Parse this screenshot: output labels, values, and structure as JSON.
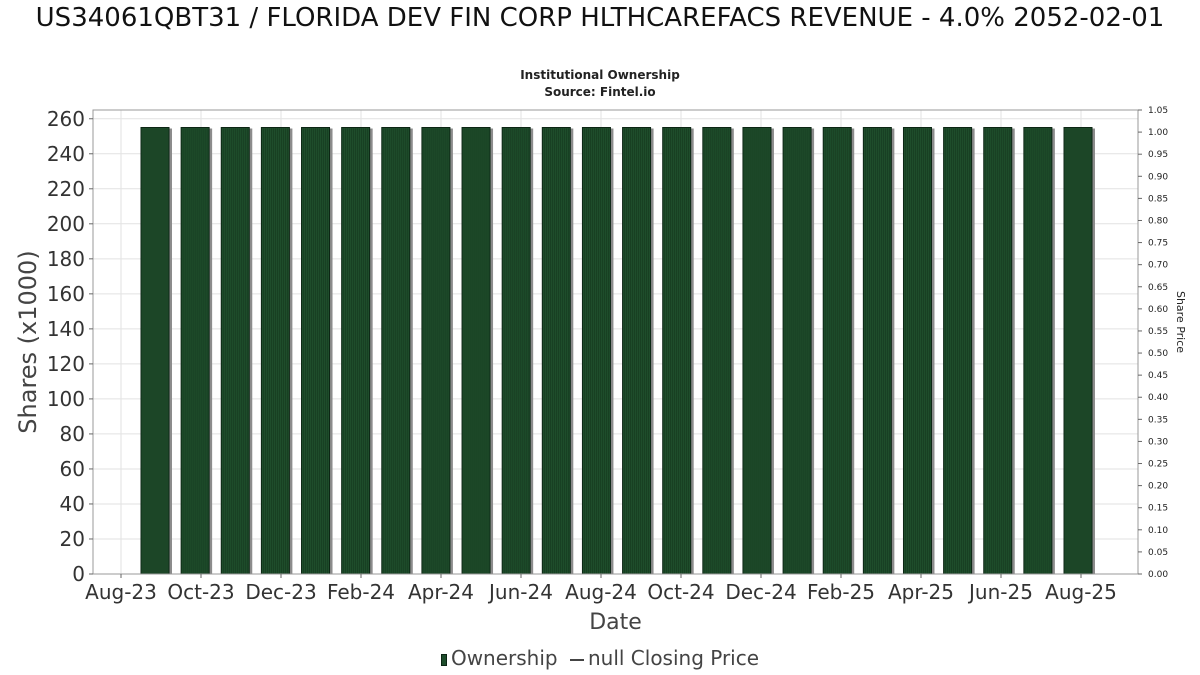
{
  "chart_data": {
    "type": "bar",
    "title": "US34061QBT31 / FLORIDA DEV FIN CORP HLTHCAREFACS REVENUE - 4.0% 2052-02-01",
    "subtitle_lines": [
      "Institutional Ownership",
      "Source: Fintel.io"
    ],
    "xlabel": "Date",
    "ylabel": "Shares (x1000)",
    "y2label": "Share Price",
    "ylim": [
      0,
      265
    ],
    "yticks": [
      0,
      20,
      40,
      60,
      80,
      100,
      120,
      140,
      160,
      180,
      200,
      220,
      240,
      260
    ],
    "y2lim": [
      0,
      1.05
    ],
    "y2ticks": [
      "0.00",
      "0.05",
      "0.10",
      "0.15",
      "0.20",
      "0.25",
      "0.30",
      "0.35",
      "0.40",
      "0.45",
      "0.50",
      "0.55",
      "0.60",
      "0.65",
      "0.70",
      "0.75",
      "0.80",
      "0.85",
      "0.90",
      "0.95",
      "1.00",
      "1.05"
    ],
    "xtick_labels": [
      "Aug-23",
      "Oct-23",
      "Dec-23",
      "Feb-24",
      "Apr-24",
      "Jun-24",
      "Aug-24",
      "Oct-24",
      "Dec-24",
      "Feb-25",
      "Apr-25",
      "Jun-25",
      "Aug-25"
    ],
    "grid": true,
    "legend_position": "bottom",
    "series": [
      {
        "name": "Ownership",
        "color": "#1e4d2b",
        "values": [
          255,
          255,
          255,
          255,
          255,
          255,
          255,
          255,
          255,
          255,
          255,
          255,
          255,
          255,
          255,
          255,
          255,
          255,
          255,
          255,
          255,
          255,
          255,
          255
        ]
      },
      {
        "name": "null Closing Price",
        "color": "#444444",
        "values": []
      }
    ]
  },
  "legend": {
    "ownership_label": "Ownership",
    "price_label": "null Closing Price"
  }
}
